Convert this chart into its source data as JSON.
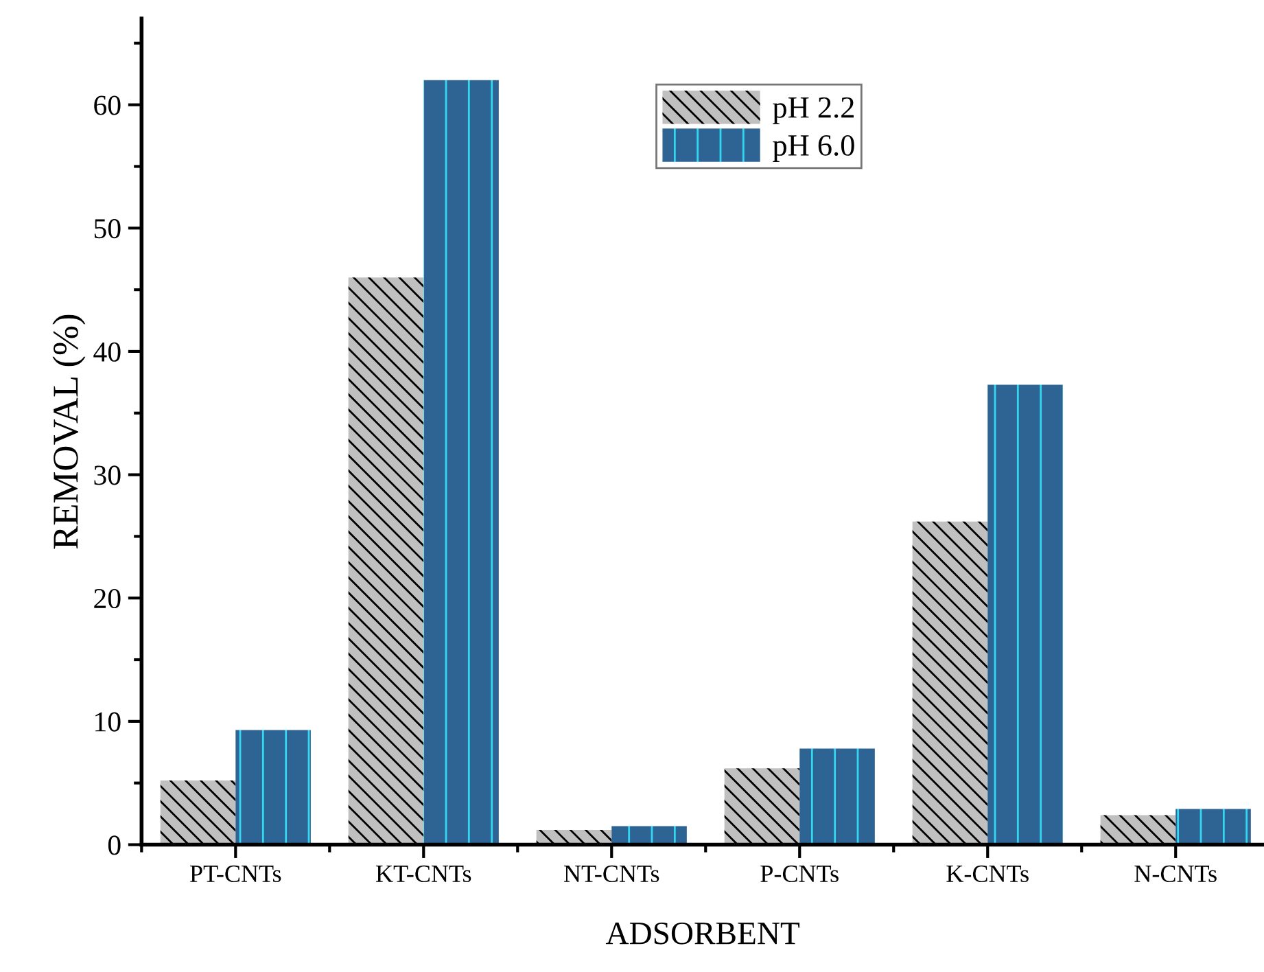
{
  "chart_data": {
    "type": "bar",
    "xlabel": "ADSORBENT",
    "ylabel": "REMOVAL (%)",
    "categories": [
      "PT-CNTs",
      "KT-CNTs",
      "NT-CNTs",
      "P-CNTs",
      "K-CNTs",
      "N-CNTs"
    ],
    "series": [
      {
        "name": "pH 2.2",
        "color": "#c0c0c0",
        "values": [
          5.2,
          46,
          1.2,
          6.2,
          26.2,
          2.4
        ]
      },
      {
        "name": "pH 6.0",
        "color": "#2e6494",
        "values": [
          9.3,
          62,
          1.5,
          7.8,
          37.3,
          2.9
        ]
      }
    ],
    "ylim": [
      0,
      67
    ],
    "yticks": [
      0,
      10,
      20,
      30,
      40,
      50,
      60
    ],
    "grid": false,
    "legend": "top"
  }
}
